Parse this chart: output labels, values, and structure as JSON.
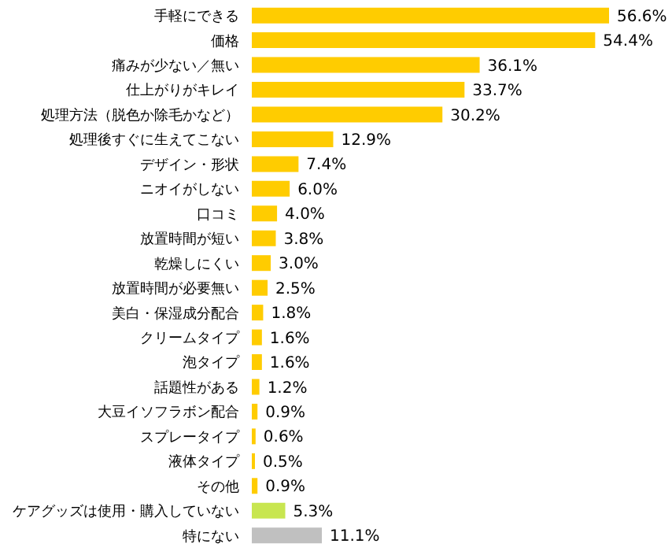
{
  "chart_data": {
    "type": "bar",
    "orientation": "horizontal",
    "legend": false,
    "grid": false,
    "categories": [
      "手軽にできる",
      "価格",
      "痛みが少ない／無い",
      "仕上がりがキレイ",
      "処理方法（脱色か除毛かなど）",
      "処理後すぐに生えてこない",
      "デザイン・形状",
      "ニオイがしない",
      "口コミ",
      "放置時間が短い",
      "乾燥しにくい",
      "放置時間が必要無い",
      "美白・保湿成分配合",
      "クリームタイプ",
      "泡タイプ",
      "話題性がある",
      "大豆イソフラボン配合",
      "スプレータイプ",
      "液体タイプ",
      "その他",
      "ケアグッズは使用・購入していない",
      "特にない"
    ],
    "values": [
      56.6,
      54.4,
      36.1,
      33.7,
      30.2,
      12.9,
      7.4,
      6.0,
      4.0,
      3.8,
      3.0,
      2.5,
      1.8,
      1.6,
      1.6,
      1.2,
      0.9,
      0.6,
      0.5,
      0.9,
      5.3,
      11.1
    ],
    "value_labels": [
      "56.6%",
      "54.4%",
      "36.1%",
      "33.7%",
      "30.2%",
      "12.9%",
      "7.4%",
      "6.0%",
      "4.0%",
      "3.8%",
      "3.0%",
      "2.5%",
      "1.8%",
      "1.6%",
      "1.6%",
      "1.2%",
      "0.9%",
      "0.6%",
      "0.5%",
      "0.9%",
      "5.3%",
      "11.1%"
    ],
    "colors": [
      "#ffcc00",
      "#ffcc00",
      "#ffcc00",
      "#ffcc00",
      "#ffcc00",
      "#ffcc00",
      "#ffcc00",
      "#ffcc00",
      "#ffcc00",
      "#ffcc00",
      "#ffcc00",
      "#ffcc00",
      "#ffcc00",
      "#ffcc00",
      "#ffcc00",
      "#ffcc00",
      "#ffcc00",
      "#ffcc00",
      "#ffcc00",
      "#ffcc00",
      "#c8e650",
      "#c0c0c0"
    ]
  }
}
